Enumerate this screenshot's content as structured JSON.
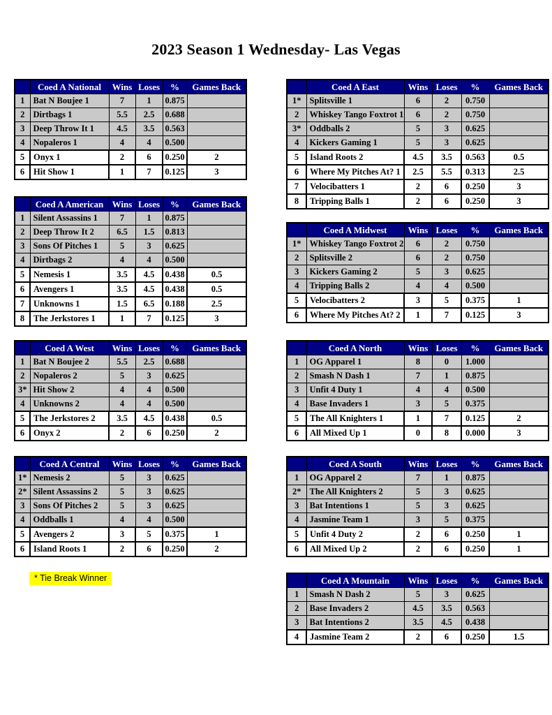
{
  "page_title": "2023 Season 1 Wednesday- Las Vegas",
  "note": "* Tie Break Winner",
  "columns": [
    "Wins",
    "Loses",
    "%",
    "Games Back"
  ],
  "colors": {
    "header_bg": "#000082",
    "header_text": "#ffffff",
    "row_shaded": "#c9c9c9",
    "row_unshaded": "#ffffff",
    "border": "#000000",
    "note_highlight": "#ffff00"
  },
  "tables": [
    {
      "id": "national",
      "name": "Coed A National",
      "rows": [
        {
          "rank": "1",
          "team": "Bat N Boujee 1",
          "wins": "7",
          "loses": "1",
          "pct": "0.875",
          "gb": "",
          "below_line": false
        },
        {
          "rank": "2",
          "team": "Dirtbags 1",
          "wins": "5.5",
          "loses": "2.5",
          "pct": "0.688",
          "gb": "",
          "below_line": false
        },
        {
          "rank": "3",
          "team": "Deep Throw It 1",
          "wins": "4.5",
          "loses": "3.5",
          "pct": "0.563",
          "gb": "",
          "below_line": false
        },
        {
          "rank": "4",
          "team": "Nopaleros 1",
          "wins": "4",
          "loses": "4",
          "pct": "0.500",
          "gb": "",
          "below_line": false
        },
        {
          "rank": "5",
          "team": "Onyx 1",
          "wins": "2",
          "loses": "6",
          "pct": "0.250",
          "gb": "2",
          "below_line": true
        },
        {
          "rank": "6",
          "team": "Hit Show 1",
          "wins": "1",
          "loses": "7",
          "pct": "0.125",
          "gb": "3",
          "below_line": true
        }
      ]
    },
    {
      "id": "american",
      "name": "Coed A American",
      "rows": [
        {
          "rank": "1",
          "team": "Silent Assassins 1",
          "wins": "7",
          "loses": "1",
          "pct": "0.875",
          "gb": "",
          "below_line": false
        },
        {
          "rank": "2",
          "team": "Deep Throw It 2",
          "wins": "6.5",
          "loses": "1.5",
          "pct": "0.813",
          "gb": "",
          "below_line": false
        },
        {
          "rank": "3",
          "team": "Sons Of Pitches 1",
          "wins": "5",
          "loses": "3",
          "pct": "0.625",
          "gb": "",
          "below_line": false
        },
        {
          "rank": "4",
          "team": "Dirtbags 2",
          "wins": "4",
          "loses": "4",
          "pct": "0.500",
          "gb": "",
          "below_line": false
        },
        {
          "rank": "5",
          "team": "Nemesis 1",
          "wins": "3.5",
          "loses": "4.5",
          "pct": "0.438",
          "gb": "0.5",
          "below_line": true
        },
        {
          "rank": "6",
          "team": "Avengers 1",
          "wins": "3.5",
          "loses": "4.5",
          "pct": "0.438",
          "gb": "0.5",
          "below_line": true
        },
        {
          "rank": "7",
          "team": "Unknowns 1",
          "wins": "1.5",
          "loses": "6.5",
          "pct": "0.188",
          "gb": "2.5",
          "below_line": true
        },
        {
          "rank": "8",
          "team": "The Jerkstores 1",
          "wins": "1",
          "loses": "7",
          "pct": "0.125",
          "gb": "3",
          "below_line": true
        }
      ]
    },
    {
      "id": "west",
      "name": "Coed A West",
      "rows": [
        {
          "rank": "1",
          "team": "Bat N Boujee 2",
          "wins": "5.5",
          "loses": "2.5",
          "pct": "0.688",
          "gb": "",
          "below_line": false
        },
        {
          "rank": "2",
          "team": "Nopaleros 2",
          "wins": "5",
          "loses": "3",
          "pct": "0.625",
          "gb": "",
          "below_line": false
        },
        {
          "rank": "3*",
          "team": "Hit Show 2",
          "wins": "4",
          "loses": "4",
          "pct": "0.500",
          "gb": "",
          "below_line": false
        },
        {
          "rank": "4",
          "team": "Unknowns 2",
          "wins": "4",
          "loses": "4",
          "pct": "0.500",
          "gb": "",
          "below_line": false
        },
        {
          "rank": "5",
          "team": "The Jerkstores 2",
          "wins": "3.5",
          "loses": "4.5",
          "pct": "0.438",
          "gb": "0.5",
          "below_line": true
        },
        {
          "rank": "6",
          "team": "Onyx 2",
          "wins": "2",
          "loses": "6",
          "pct": "0.250",
          "gb": "2",
          "below_line": true
        }
      ]
    },
    {
      "id": "central",
      "name": "Coed A Central",
      "rows": [
        {
          "rank": "1*",
          "team": "Nemesis 2",
          "wins": "5",
          "loses": "3",
          "pct": "0.625",
          "gb": "",
          "below_line": false
        },
        {
          "rank": "2*",
          "team": "Silent Assassins 2",
          "wins": "5",
          "loses": "3",
          "pct": "0.625",
          "gb": "",
          "below_line": false
        },
        {
          "rank": "3",
          "team": "Sons Of Pitches 2",
          "wins": "5",
          "loses": "3",
          "pct": "0.625",
          "gb": "",
          "below_line": false
        },
        {
          "rank": "4",
          "team": "Oddballs 1",
          "wins": "4",
          "loses": "4",
          "pct": "0.500",
          "gb": "",
          "below_line": false
        },
        {
          "rank": "5",
          "team": "Avengers 2",
          "wins": "3",
          "loses": "5",
          "pct": "0.375",
          "gb": "1",
          "below_line": true
        },
        {
          "rank": "6",
          "team": "Island Roots 1",
          "wins": "2",
          "loses": "6",
          "pct": "0.250",
          "gb": "2",
          "below_line": true
        }
      ]
    },
    {
      "id": "east",
      "name": "Coed A East",
      "rows": [
        {
          "rank": "1*",
          "team": "Splitsville 1",
          "wins": "6",
          "loses": "2",
          "pct": "0.750",
          "gb": "",
          "below_line": false
        },
        {
          "rank": "2",
          "team": "Whiskey Tango Foxtrot 1",
          "wins": "6",
          "loses": "2",
          "pct": "0.750",
          "gb": "",
          "below_line": false
        },
        {
          "rank": "3*",
          "team": "Oddballs 2",
          "wins": "5",
          "loses": "3",
          "pct": "0.625",
          "gb": "",
          "below_line": false
        },
        {
          "rank": "4",
          "team": "Kickers Gaming 1",
          "wins": "5",
          "loses": "3",
          "pct": "0.625",
          "gb": "",
          "below_line": false
        },
        {
          "rank": "5",
          "team": "Island Roots 2",
          "wins": "4.5",
          "loses": "3.5",
          "pct": "0.563",
          "gb": "0.5",
          "below_line": true
        },
        {
          "rank": "6",
          "team": "Where My Pitches At? 1",
          "wins": "2.5",
          "loses": "5.5",
          "pct": "0.313",
          "gb": "2.5",
          "below_line": true
        },
        {
          "rank": "7",
          "team": "Velocibatters 1",
          "wins": "2",
          "loses": "6",
          "pct": "0.250",
          "gb": "3",
          "below_line": true
        },
        {
          "rank": "8",
          "team": "Tripping Balls 1",
          "wins": "2",
          "loses": "6",
          "pct": "0.250",
          "gb": "3",
          "below_line": true
        }
      ]
    },
    {
      "id": "midwest",
      "name": "Coed A Midwest",
      "rows": [
        {
          "rank": "1*",
          "team": "Whiskey Tango Foxtrot 2",
          "wins": "6",
          "loses": "2",
          "pct": "0.750",
          "gb": "",
          "below_line": false
        },
        {
          "rank": "2",
          "team": "Splitsville 2",
          "wins": "6",
          "loses": "2",
          "pct": "0.750",
          "gb": "",
          "below_line": false
        },
        {
          "rank": "3",
          "team": "Kickers Gaming 2",
          "wins": "5",
          "loses": "3",
          "pct": "0.625",
          "gb": "",
          "below_line": false
        },
        {
          "rank": "4",
          "team": "Tripping Balls 2",
          "wins": "4",
          "loses": "4",
          "pct": "0.500",
          "gb": "",
          "below_line": false
        },
        {
          "rank": "5",
          "team": "Velocibatters 2",
          "wins": "3",
          "loses": "5",
          "pct": "0.375",
          "gb": "1",
          "below_line": true
        },
        {
          "rank": "6",
          "team": "Where My Pitches At? 2",
          "wins": "1",
          "loses": "7",
          "pct": "0.125",
          "gb": "3",
          "below_line": true
        }
      ]
    },
    {
      "id": "north",
      "name": "Coed A North",
      "rows": [
        {
          "rank": "1",
          "team": "OG Apparel 1",
          "wins": "8",
          "loses": "0",
          "pct": "1.000",
          "gb": "",
          "below_line": false
        },
        {
          "rank": "2",
          "team": "Smash N Dash 1",
          "wins": "7",
          "loses": "1",
          "pct": "0.875",
          "gb": "",
          "below_line": false
        },
        {
          "rank": "3",
          "team": "Unfit 4 Duty 1",
          "wins": "4",
          "loses": "4",
          "pct": "0.500",
          "gb": "",
          "below_line": false
        },
        {
          "rank": "4",
          "team": "Base Invaders 1",
          "wins": "3",
          "loses": "5",
          "pct": "0.375",
          "gb": "",
          "below_line": false
        },
        {
          "rank": "5",
          "team": "The All Knighters 1",
          "wins": "1",
          "loses": "7",
          "pct": "0.125",
          "gb": "2",
          "below_line": true
        },
        {
          "rank": "6",
          "team": "All Mixed Up 1",
          "wins": "0",
          "loses": "8",
          "pct": "0.000",
          "gb": "3",
          "below_line": true
        }
      ]
    },
    {
      "id": "south",
      "name": "Coed A South",
      "rows": [
        {
          "rank": "1",
          "team": "OG Apparel 2",
          "wins": "7",
          "loses": "1",
          "pct": "0.875",
          "gb": "",
          "below_line": false
        },
        {
          "rank": "2*",
          "team": "The All Knighters 2",
          "wins": "5",
          "loses": "3",
          "pct": "0.625",
          "gb": "",
          "below_line": false
        },
        {
          "rank": "3",
          "team": "Bat Intentions 1",
          "wins": "5",
          "loses": "3",
          "pct": "0.625",
          "gb": "",
          "below_line": false
        },
        {
          "rank": "4",
          "team": "Jasmine Team 1",
          "wins": "3",
          "loses": "5",
          "pct": "0.375",
          "gb": "",
          "below_line": false
        },
        {
          "rank": "5",
          "team": "Unfit 4 Duty 2",
          "wins": "2",
          "loses": "6",
          "pct": "0.250",
          "gb": "1",
          "below_line": true
        },
        {
          "rank": "6",
          "team": "All Mixed Up 2",
          "wins": "2",
          "loses": "6",
          "pct": "0.250",
          "gb": "1",
          "below_line": true
        }
      ]
    },
    {
      "id": "mountain",
      "name": "Coed A Mountain",
      "rows": [
        {
          "rank": "1",
          "team": "Smash N Dash 2",
          "wins": "5",
          "loses": "3",
          "pct": "0.625",
          "gb": "",
          "below_line": false
        },
        {
          "rank": "2",
          "team": "Base Invaders 2",
          "wins": "4.5",
          "loses": "3.5",
          "pct": "0.563",
          "gb": "",
          "below_line": false
        },
        {
          "rank": "3",
          "team": "Bat Intentions 2",
          "wins": "3.5",
          "loses": "4.5",
          "pct": "0.438",
          "gb": "",
          "below_line": false
        },
        {
          "rank": "4",
          "team": "Jasmine Team 2",
          "wins": "2",
          "loses": "6",
          "pct": "0.250",
          "gb": "1.5",
          "below_line": true
        }
      ]
    }
  ]
}
